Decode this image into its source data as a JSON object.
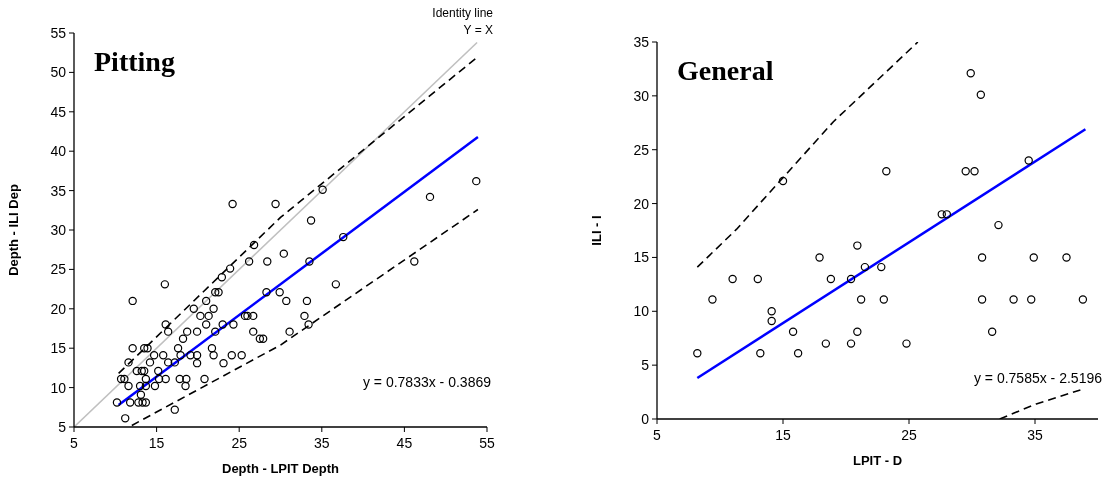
{
  "chart_data": [
    {
      "type": "scatter",
      "title": "Pitting",
      "xlabel": "Depth - LPIT Depth",
      "ylabel": "Depth - ILI Dep",
      "xlim": [
        5,
        55
      ],
      "ylim": [
        5,
        55
      ],
      "xticks": [
        5,
        15,
        25,
        35,
        45,
        55
      ],
      "yticks": [
        5,
        10,
        15,
        20,
        25,
        30,
        35,
        40,
        45,
        50,
        55
      ],
      "grid": false,
      "annotations": [
        "Identity line",
        "Y = X",
        "y = 0.7833x - 0.3869"
      ],
      "series": [
        {
          "type": "line",
          "color": "#c0c0c0",
          "line_style": "solid",
          "marker": "none",
          "x": [
            5,
            53.8
          ],
          "values": [
            5,
            53.8
          ]
        },
        {
          "type": "line",
          "color": "#000000",
          "line_style": "dashed",
          "marker": "none",
          "x": [
            10.4,
            30,
            53.9
          ],
          "values": [
            11.8,
            31.6,
            52.0
          ]
        },
        {
          "type": "line",
          "color": "#000000",
          "line_style": "dashed",
          "marker": "none",
          "x": [
            12,
            30,
            53.9
          ],
          "values": [
            5.2,
            15.4,
            32.6
          ]
        },
        {
          "type": "line",
          "color": "#0000ff",
          "line_style": "solid",
          "marker": "none",
          "x": [
            10.4,
            53.9
          ],
          "values": [
            7.8,
            41.8
          ]
        },
        {
          "color": "#000000",
          "marker": "circle",
          "x": [
            10.2,
            10.7,
            11.1,
            11.2,
            11.6,
            11.6,
            12.1,
            12.1,
            11.8,
            12.6,
            12.8,
            13.0,
            13.1,
            13.2,
            13.3,
            13.5,
            13.7,
            13.5,
            13.9,
            13.7,
            13.7,
            14.2,
            14.7,
            14.8,
            15.2,
            15.3,
            15.8,
            16.0,
            16.1,
            16.1,
            16.4,
            16.4,
            17.2,
            17.2,
            17.6,
            17.8,
            17.9,
            18.2,
            18.5,
            18.6,
            18.7,
            19.1,
            19.5,
            19.9,
            19.9,
            19.9,
            20.3,
            20.8,
            21.0,
            21.0,
            21.3,
            21.7,
            21.9,
            21.9,
            22.1,
            22.1,
            22.5,
            22.9,
            23.0,
            23.1,
            23.9,
            24.1,
            24.3,
            25.3,
            25.7,
            26.0,
            26.2,
            26.7,
            26.7,
            26.8,
            27.5,
            27.9,
            28.3,
            28.4,
            29.9,
            30.4,
            30.7,
            31.1,
            32.9,
            33.2,
            33.4,
            33.5,
            36.7,
            37.6,
            46.2,
            24.2,
            29.4,
            35.1,
            33.7,
            48.1,
            53.7
          ],
          "values": [
            8.1,
            11.1,
            11.1,
            6.1,
            13.2,
            10.2,
            21.0,
            15.0,
            8.1,
            12.1,
            8.1,
            10.2,
            9.1,
            12.1,
            8.1,
            12.1,
            8.1,
            15.0,
            15.0,
            11.1,
            10.2,
            13.2,
            14.1,
            10.2,
            12.1,
            11.1,
            14.1,
            23.1,
            18.0,
            11.1,
            13.2,
            17.1,
            7.2,
            13.2,
            15.0,
            11.1,
            14.1,
            16.2,
            10.2,
            11.1,
            17.1,
            14.1,
            20.0,
            13.1,
            14.1,
            17.1,
            19.1,
            11.1,
            18.0,
            21.0,
            19.1,
            15.0,
            14.1,
            20.0,
            17.1,
            22.1,
            22.1,
            24.0,
            18.0,
            13.1,
            25.1,
            14.1,
            18.0,
            14.1,
            19.1,
            19.1,
            26.0,
            19.1,
            17.1,
            28.1,
            16.2,
            16.2,
            22.1,
            26.0,
            22.1,
            27.0,
            21.0,
            17.1,
            19.1,
            21.0,
            18.0,
            26.0,
            23.1,
            29.1,
            26.0,
            33.3,
            33.3,
            35.1,
            31.2,
            34.2,
            36.2
          ]
        }
      ]
    },
    {
      "type": "scatter",
      "title": "General",
      "xlabel": "LPIT - D",
      "ylabel": "ILI - I",
      "xlim": [
        5,
        40
      ],
      "ylim": [
        0,
        35
      ],
      "xticks": [
        5,
        15,
        25,
        35
      ],
      "yticks": [
        0,
        5,
        10,
        15,
        20,
        25,
        30,
        35
      ],
      "grid": false,
      "annotations": [
        "y = 0.7585x - 2.5196"
      ],
      "series": [
        {
          "type": "line",
          "color": "#000000",
          "line_style": "dashed",
          "marker": "none",
          "x": [
            8.2,
            11.3,
            19.0,
            25.7
          ],
          "values": [
            14.1,
            17.6,
            27.6,
            35
          ]
        },
        {
          "type": "line",
          "color": "#000000",
          "line_style": "dashed",
          "marker": "none",
          "x": [
            32.2,
            35.1,
            38.6
          ],
          "values": [
            0,
            1.4,
            2.7
          ]
        },
        {
          "type": "line",
          "color": "#0000ff",
          "line_style": "solid",
          "marker": "none",
          "x": [
            8.2,
            39.0
          ],
          "values": [
            3.8,
            26.9
          ]
        },
        {
          "color": "#000000",
          "marker": "circle",
          "x": [
            8.2,
            9.4,
            11.0,
            13.0,
            13.2,
            14.1,
            14.1,
            15.8,
            16.2,
            17.9,
            18.4,
            18.8,
            20.4,
            20.4,
            20.9,
            20.9,
            21.2,
            21.5,
            22.8,
            23.0,
            24.8,
            30.8,
            30.8,
            31.6,
            33.3,
            34.7,
            34.9,
            37.5,
            38.8,
            15.0,
            23.2,
            29.9,
            30.7,
            29.5,
            30.2,
            34.5,
            27.6,
            28.0,
            32.1
          ],
          "values": [
            6.1,
            11.1,
            13.0,
            13.0,
            6.1,
            10.0,
            9.1,
            8.1,
            6.1,
            15.0,
            7.0,
            13.0,
            13.0,
            7.0,
            16.1,
            8.1,
            11.1,
            14.1,
            14.1,
            11.1,
            7.0,
            15.0,
            11.1,
            8.1,
            11.1,
            11.1,
            15.0,
            15.0,
            11.1,
            22.1,
            23.0,
            32.1,
            30.1,
            23.0,
            23.0,
            24.0,
            19.0,
            19.0,
            18.0
          ]
        }
      ]
    }
  ]
}
